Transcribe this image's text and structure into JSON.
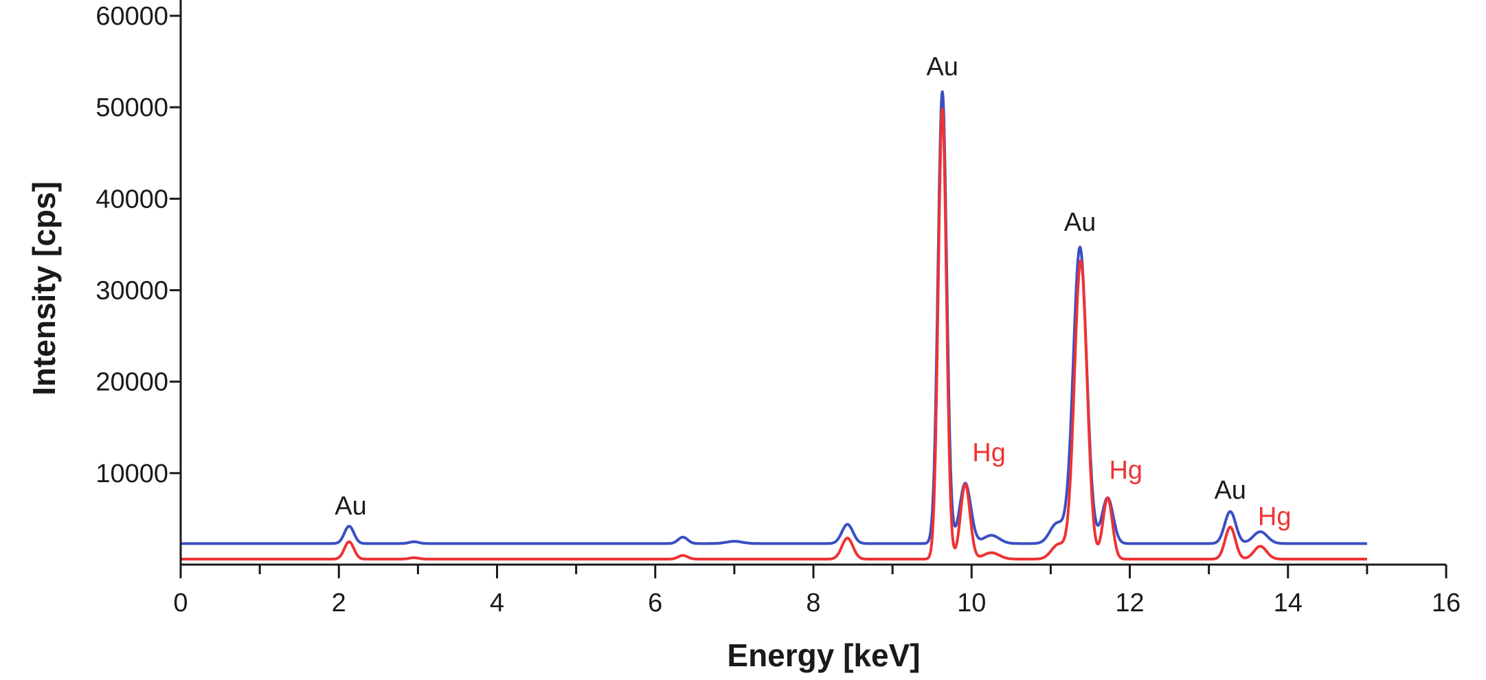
{
  "chart_data": {
    "type": "line",
    "xlabel": "Energy [keV]",
    "ylabel": "Intensity [cps]",
    "xlim": [
      0,
      16
    ],
    "ylim": [
      0,
      62000
    ],
    "x_ticks": [
      0,
      2,
      4,
      6,
      8,
      10,
      12,
      14,
      16
    ],
    "y_ticks": [
      10000,
      20000,
      30000,
      40000,
      50000,
      60000
    ],
    "grid": false,
    "legend": "none",
    "colors": {
      "blue": "#3a4fc4",
      "red": "#ee3333",
      "text": "#1a1a1a"
    },
    "series": [
      {
        "color": "#3a4fc4",
        "baseline": 2300,
        "x_end": 15.0,
        "peaks": [
          {
            "x": 2.13,
            "height": 1900,
            "width": 0.06
          },
          {
            "x": 2.95,
            "height": 200,
            "width": 0.06
          },
          {
            "x": 6.35,
            "height": 700,
            "width": 0.06
          },
          {
            "x": 7.0,
            "height": 250,
            "width": 0.1
          },
          {
            "x": 8.43,
            "height": 2100,
            "width": 0.07
          },
          {
            "x": 9.63,
            "height": 49400,
            "width": 0.055
          },
          {
            "x": 9.92,
            "height": 6600,
            "width": 0.07
          },
          {
            "x": 10.25,
            "height": 900,
            "width": 0.1
          },
          {
            "x": 11.08,
            "height": 2200,
            "width": 0.09
          },
          {
            "x": 11.37,
            "height": 32400,
            "width": 0.085
          },
          {
            "x": 11.72,
            "height": 5000,
            "width": 0.07
          },
          {
            "x": 13.27,
            "height": 3500,
            "width": 0.07
          },
          {
            "x": 13.65,
            "height": 1300,
            "width": 0.09
          }
        ]
      },
      {
        "color": "#ee3333",
        "baseline": 600,
        "x_end": 15.0,
        "peaks": [
          {
            "x": 2.13,
            "height": 1900,
            "width": 0.06
          },
          {
            "x": 2.95,
            "height": 150,
            "width": 0.06
          },
          {
            "x": 6.35,
            "height": 400,
            "width": 0.06
          },
          {
            "x": 8.43,
            "height": 2300,
            "width": 0.07
          },
          {
            "x": 9.63,
            "height": 49200,
            "width": 0.052
          },
          {
            "x": 9.92,
            "height": 8200,
            "width": 0.06
          },
          {
            "x": 10.25,
            "height": 700,
            "width": 0.1
          },
          {
            "x": 11.1,
            "height": 1600,
            "width": 0.09
          },
          {
            "x": 11.38,
            "height": 32600,
            "width": 0.08
          },
          {
            "x": 11.72,
            "height": 6700,
            "width": 0.06
          },
          {
            "x": 13.27,
            "height": 3500,
            "width": 0.065
          },
          {
            "x": 13.65,
            "height": 1400,
            "width": 0.08
          }
        ]
      }
    ],
    "annotations": [
      {
        "text": "Au",
        "x": 9.63,
        "y": 53500,
        "color": "#1a1a1a"
      },
      {
        "text": "Au",
        "x": 11.37,
        "y": 36500,
        "color": "#1a1a1a"
      },
      {
        "text": "Au",
        "x": 2.15,
        "y": 5500,
        "color": "#1a1a1a"
      },
      {
        "text": "Au",
        "x": 13.27,
        "y": 7200,
        "color": "#1a1a1a"
      },
      {
        "text": "Hg",
        "x": 10.22,
        "y": 11300,
        "color": "#ee3333"
      },
      {
        "text": "Hg",
        "x": 11.95,
        "y": 9400,
        "color": "#ee3333"
      },
      {
        "text": "Hg",
        "x": 13.83,
        "y": 4300,
        "color": "#ee3333"
      }
    ]
  }
}
